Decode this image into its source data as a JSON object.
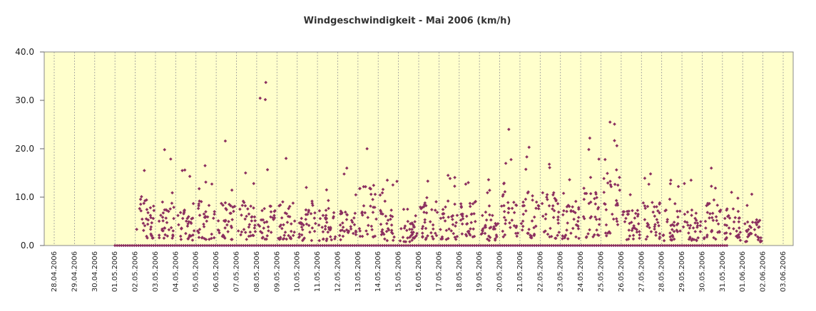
{
  "chart_data": {
    "type": "scatter",
    "title": "Windgeschwindigkeit - Mai 2006 (km/h)",
    "xlabel": "",
    "ylabel": "",
    "ylim": [
      0,
      40
    ],
    "y_ticks": [
      "0.0",
      "10.0",
      "20.0",
      "30.0",
      "40.0"
    ],
    "x_ticks": [
      "28.04.2006",
      "29.04.2006",
      "30.04.2006",
      "01.05.2006",
      "02.05.2006",
      "03.05.2006",
      "04.05.2006",
      "05.05.2006",
      "06.05.2006",
      "07.05.2006",
      "08.05.2006",
      "09.05.2006",
      "10.05.2006",
      "11.05.2006",
      "12.05.2006",
      "13.05.2006",
      "14.05.2006",
      "15.05.2006",
      "16.05.2006",
      "17.05.2006",
      "18.05.2006",
      "19.05.2006",
      "20.05.2006",
      "21.05.2006",
      "22.05.2006",
      "23.05.2006",
      "24.05.2006",
      "25.05.2006",
      "26.05.2006",
      "27.05.2006",
      "28.05.2006",
      "29.05.2006",
      "30.05.2006",
      "31.05.2006",
      "01.06.2006",
      "02.06.2006",
      "03.06.2006"
    ],
    "grid": true,
    "legend": "none",
    "colors": {
      "plot_background": "#ffffcc",
      "marker": "#8b2f5f",
      "gridline": "#999999"
    },
    "series": [
      {
        "daily_summary": [
          {
            "date": "02.05.2006",
            "max": 15.5,
            "typical": 6
          },
          {
            "date": "03.05.2006",
            "max": 19.8,
            "typical": 6
          },
          {
            "date": "04.05.2006",
            "max": 15.6,
            "typical": 4
          },
          {
            "date": "05.05.2006",
            "max": 16.5,
            "typical": 5
          },
          {
            "date": "06.05.2006",
            "max": 21.6,
            "typical": 5
          },
          {
            "date": "07.05.2006",
            "max": 15.0,
            "typical": 5
          },
          {
            "date": "08.05.2006",
            "max": 33.7,
            "typical": 5
          },
          {
            "date": "09.05.2006",
            "max": 18.0,
            "typical": 5
          },
          {
            "date": "10.05.2006",
            "max": 12.0,
            "typical": 4
          },
          {
            "date": "11.05.2006",
            "max": 11.5,
            "typical": 4
          },
          {
            "date": "12.05.2006",
            "max": 16.0,
            "typical": 4
          },
          {
            "date": "13.05.2006",
            "max": 20.0,
            "typical": 7
          },
          {
            "date": "14.05.2006",
            "max": 13.5,
            "typical": 4
          },
          {
            "date": "15.05.2006",
            "max": 7.5,
            "typical": 3
          },
          {
            "date": "16.05.2006",
            "max": 13.3,
            "typical": 5
          },
          {
            "date": "17.05.2006",
            "max": 14.5,
            "typical": 5
          },
          {
            "date": "18.05.2006",
            "max": 13.0,
            "typical": 5
          },
          {
            "date": "19.05.2006",
            "max": 13.6,
            "typical": 4
          },
          {
            "date": "20.05.2006",
            "max": 24.0,
            "typical": 7
          },
          {
            "date": "21.05.2006",
            "max": 20.3,
            "typical": 6
          },
          {
            "date": "22.05.2006",
            "max": 16.8,
            "typical": 6
          },
          {
            "date": "23.05.2006",
            "max": 13.6,
            "typical": 5
          },
          {
            "date": "24.05.2006",
            "max": 22.2,
            "typical": 6
          },
          {
            "date": "25.05.2006",
            "max": 25.5,
            "typical": 8
          },
          {
            "date": "26.05.2006",
            "max": 10.5,
            "typical": 4
          },
          {
            "date": "27.05.2006",
            "max": 14.8,
            "typical": 5
          },
          {
            "date": "28.05.2006",
            "max": 13.5,
            "typical": 4
          },
          {
            "date": "29.05.2006",
            "max": 13.5,
            "typical": 4
          },
          {
            "date": "30.05.2006",
            "max": 16.0,
            "typical": 5
          },
          {
            "date": "31.05.2006",
            "max": 11.0,
            "typical": 4
          },
          {
            "date": "01.06.2006",
            "max": 10.6,
            "typical": 3
          }
        ]
      }
    ]
  }
}
